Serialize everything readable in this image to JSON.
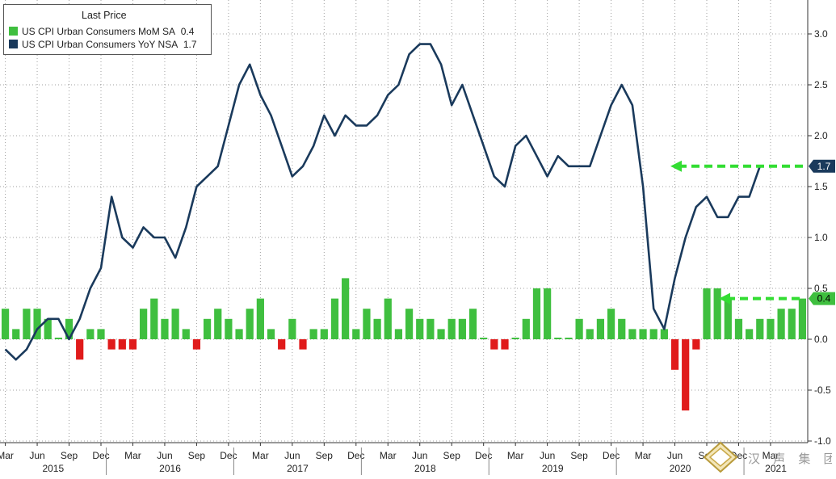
{
  "chart_data": {
    "type": "bar+line",
    "legend": {
      "title": "Last Price",
      "entries": [
        {
          "label": "US CPI Urban Consumers MoM SA",
          "value": "0.4",
          "color": "#3fbf3f"
        },
        {
          "label": "US CPI Urban Consumers YoY NSA",
          "value": "1.7",
          "color": "#1a3a5c"
        }
      ]
    },
    "y_axis": {
      "ticks": [
        3.0,
        2.5,
        2.0,
        1.5,
        1.0,
        0.5,
        0.0,
        -0.5,
        -1.0
      ],
      "tick_labels": [
        "3.0",
        "2.5",
        "2.0",
        "1.5",
        "1.0",
        "0.5",
        "0.0",
        "-0.5",
        "-1.0"
      ],
      "ylim": [
        -1.0,
        3.0
      ],
      "position": "right"
    },
    "x_axis": {
      "month_labels": [
        "Mar",
        "Jun",
        "Sep",
        "Dec",
        "Mar",
        "Jun",
        "Sep",
        "Dec",
        "Mar",
        "Jun",
        "Sep",
        "Dec",
        "Mar",
        "Jun",
        "Sep",
        "Dec",
        "Mar",
        "Jun",
        "Sep",
        "Dec",
        "Mar",
        "Jun",
        "Sep",
        "Dec",
        "Mar"
      ],
      "year_labels": [
        "2015",
        "2016",
        "2017",
        "2018",
        "2019",
        "2020",
        "2021"
      ]
    },
    "grid": true,
    "series": [
      {
        "name": "US CPI Urban Consumers MoM SA",
        "kind": "bar",
        "positive_color": "#3fbf3f",
        "negative_color": "#e01b1b",
        "values": [
          0.3,
          0.1,
          0.3,
          0.3,
          0.2,
          0.0,
          0.2,
          -0.2,
          0.1,
          0.1,
          -0.1,
          -0.1,
          -0.1,
          0.3,
          0.4,
          0.2,
          0.3,
          0.1,
          -0.1,
          0.2,
          0.3,
          0.2,
          0.1,
          0.3,
          0.4,
          0.1,
          -0.1,
          0.2,
          -0.1,
          0.1,
          0.1,
          0.4,
          0.6,
          0.1,
          0.3,
          0.2,
          0.4,
          0.1,
          0.3,
          0.2,
          0.2,
          0.1,
          0.2,
          0.2,
          0.3,
          0.0,
          -0.1,
          -0.1,
          0.0,
          0.2,
          0.5,
          0.5,
          0.0,
          0.0,
          0.2,
          0.1,
          0.2,
          0.3,
          0.2,
          0.1,
          0.1,
          0.1,
          0.1,
          -0.3,
          -0.7,
          -0.1,
          0.5,
          0.5,
          0.4,
          0.2,
          0.1,
          0.2,
          0.2,
          0.3,
          0.3,
          0.4
        ]
      },
      {
        "name": "US CPI Urban Consumers YoY NSA",
        "kind": "line",
        "color": "#1a3a5c",
        "values": [
          -0.1,
          -0.2,
          -0.1,
          0.1,
          0.2,
          0.2,
          0.0,
          0.2,
          0.5,
          0.7,
          1.4,
          1.0,
          0.9,
          1.1,
          1.0,
          1.0,
          0.8,
          1.1,
          1.5,
          1.6,
          1.7,
          2.1,
          2.5,
          2.7,
          2.4,
          2.2,
          1.9,
          1.6,
          1.7,
          1.9,
          2.2,
          2.0,
          2.2,
          2.1,
          2.1,
          2.2,
          2.4,
          2.5,
          2.8,
          2.9,
          2.9,
          2.7,
          2.3,
          2.5,
          2.2,
          1.9,
          1.6,
          1.5,
          1.9,
          2.0,
          1.8,
          1.6,
          1.8,
          1.7,
          1.7,
          1.7,
          2.0,
          2.3,
          2.5,
          2.3,
          1.5,
          0.3,
          0.1,
          0.6,
          1.0,
          1.3,
          1.4,
          1.2,
          1.2,
          1.4,
          1.4,
          1.7
        ]
      }
    ],
    "last_value_labels": [
      {
        "text": "1.7",
        "y": 1.7,
        "bg": "#1a3a5c",
        "fg": "#ffffff"
      },
      {
        "text": "0.4",
        "y": 0.4,
        "bg": "#3fbf3f",
        "fg": "#000000"
      }
    ],
    "annotations": [
      {
        "kind": "dashed-arrow",
        "color": "#33dd33",
        "y": 1.7
      },
      {
        "kind": "dashed-arrow",
        "color": "#33dd33",
        "y": 0.4
      }
    ]
  },
  "watermark": {
    "text": "汉 声 集 团"
  }
}
